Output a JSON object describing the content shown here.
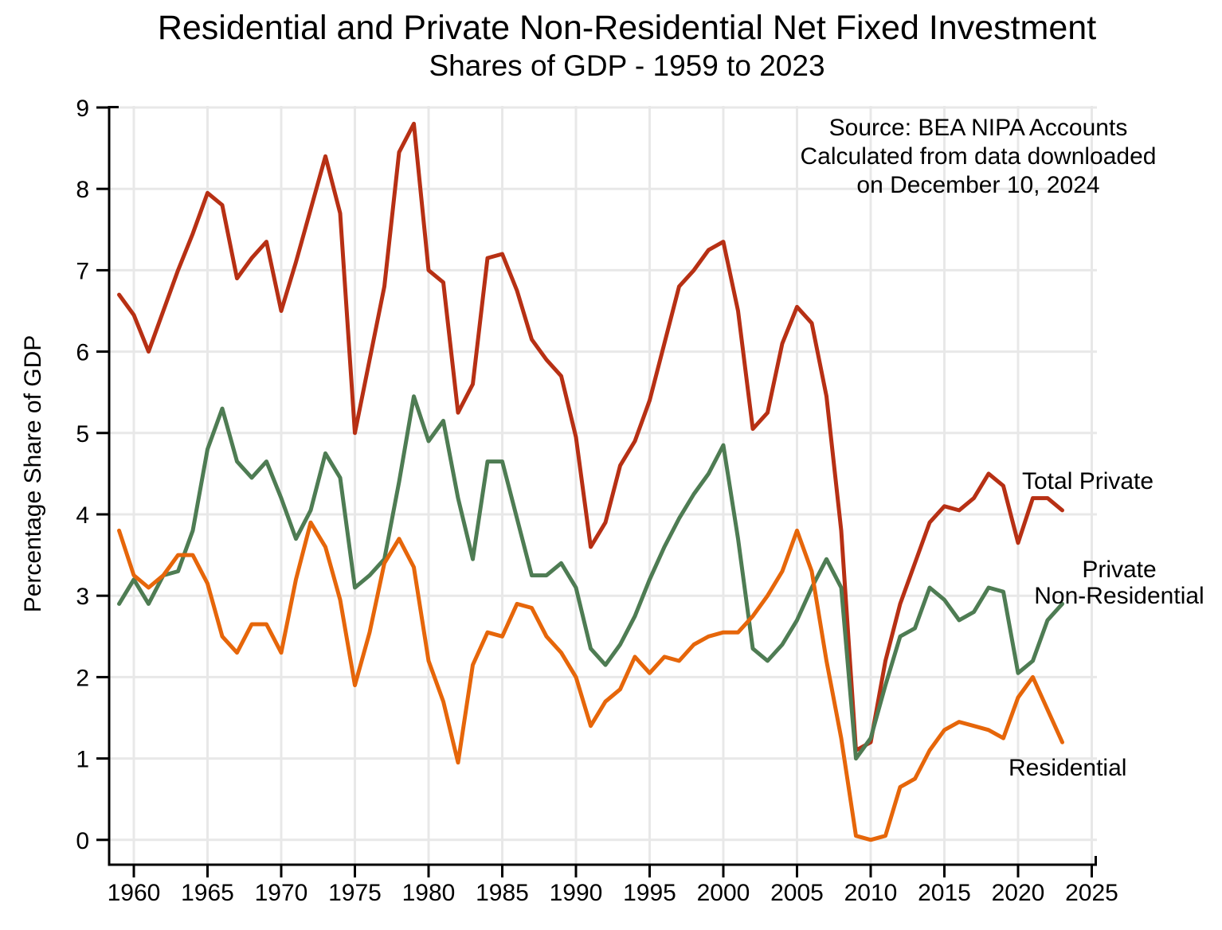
{
  "title": "Residential and Private Non-Residential Net Fixed Investment",
  "subtitle": "Shares of GDP - 1959 to 2023",
  "y_axis_label": "Percentage Share of GDP",
  "source_note": {
    "line1": "Source:  BEA NIPA Accounts",
    "line2": "Calculated from data downloaded",
    "line3": "on December 10, 2024"
  },
  "series_labels": {
    "total_private": "Total Private",
    "private_line1": "Private",
    "private_line2": "Non-Residential",
    "residential": "Residential"
  },
  "colors": {
    "total_private": "#b73014",
    "private_non_residential": "#4e7c53",
    "residential": "#e6660a",
    "gridline": "#e8e8e8",
    "axis": "#000000"
  },
  "chart_data": {
    "type": "line",
    "title": "Residential and Private Non-Residential Net Fixed Investment",
    "subtitle": "Shares of GDP - 1959 to 2023",
    "xlabel": "",
    "ylabel": "Percentage Share of GDP",
    "xlim": [
      1958.3,
      2025.8
    ],
    "ylim": [
      0,
      9
    ],
    "xticks": [
      1960,
      1965,
      1970,
      1975,
      1980,
      1985,
      1990,
      1995,
      2000,
      2005,
      2010,
      2015,
      2020,
      2025
    ],
    "yticks": [
      0,
      1,
      2,
      3,
      4,
      5,
      6,
      7,
      8,
      9
    ],
    "grid": true,
    "legend_position": "direct line labels at right",
    "annotation": "Source:  BEA NIPA Accounts / Calculated from data downloaded / on December 10, 2024",
    "x": [
      1959,
      1960,
      1961,
      1962,
      1963,
      1964,
      1965,
      1966,
      1967,
      1968,
      1969,
      1970,
      1971,
      1972,
      1973,
      1974,
      1975,
      1976,
      1977,
      1978,
      1979,
      1980,
      1981,
      1982,
      1983,
      1984,
      1985,
      1986,
      1987,
      1988,
      1989,
      1990,
      1991,
      1992,
      1993,
      1994,
      1995,
      1996,
      1997,
      1998,
      1999,
      2000,
      2001,
      2002,
      2003,
      2004,
      2005,
      2006,
      2007,
      2008,
      2009,
      2010,
      2011,
      2012,
      2013,
      2014,
      2015,
      2016,
      2017,
      2018,
      2019,
      2020,
      2021,
      2022,
      2023
    ],
    "series": [
      {
        "name": "Total Private",
        "color": "#b73014",
        "values": [
          6.7,
          6.45,
          6.0,
          6.5,
          7.0,
          7.45,
          7.95,
          7.8,
          6.9,
          7.15,
          7.35,
          6.5,
          7.1,
          7.75,
          8.4,
          7.7,
          5.0,
          5.9,
          6.8,
          8.45,
          8.8,
          7.0,
          6.85,
          5.25,
          5.6,
          7.15,
          7.2,
          6.75,
          6.15,
          5.9,
          5.7,
          4.95,
          3.6,
          3.9,
          4.6,
          4.9,
          5.4,
          6.1,
          6.8,
          7.0,
          7.25,
          7.35,
          6.5,
          5.05,
          5.25,
          6.1,
          6.55,
          6.35,
          5.45,
          3.8,
          1.1,
          1.2,
          2.2,
          2.9,
          3.4,
          3.9,
          4.1,
          4.05,
          4.2,
          4.5,
          4.35,
          3.65,
          4.2,
          4.2,
          4.05
        ]
      },
      {
        "name": "Private Non-Residential",
        "color": "#4e7c53",
        "values": [
          2.9,
          3.2,
          2.9,
          3.25,
          3.3,
          3.8,
          4.8,
          5.3,
          4.65,
          4.45,
          4.65,
          4.2,
          3.7,
          4.05,
          4.75,
          4.45,
          3.1,
          3.25,
          3.45,
          4.4,
          5.45,
          4.9,
          5.15,
          4.2,
          3.45,
          4.65,
          4.65,
          3.95,
          3.25,
          3.25,
          3.4,
          3.1,
          2.35,
          2.15,
          2.4,
          2.75,
          3.2,
          3.6,
          3.95,
          4.25,
          4.5,
          4.85,
          3.7,
          2.35,
          2.2,
          2.4,
          2.7,
          3.1,
          3.45,
          3.1,
          1.0,
          1.25,
          1.9,
          2.5,
          2.6,
          3.1,
          2.95,
          2.7,
          2.8,
          3.1,
          3.05,
          2.05,
          2.2,
          2.7,
          2.9
        ]
      },
      {
        "name": "Residential",
        "color": "#e6660a",
        "values": [
          3.8,
          3.25,
          3.1,
          3.25,
          3.5,
          3.5,
          3.15,
          2.5,
          2.3,
          2.65,
          2.65,
          2.3,
          3.2,
          3.9,
          3.6,
          2.95,
          1.9,
          2.55,
          3.4,
          3.7,
          3.35,
          2.2,
          1.7,
          0.95,
          2.15,
          2.55,
          2.5,
          2.9,
          2.85,
          2.5,
          2.3,
          2.0,
          1.4,
          1.7,
          1.85,
          2.25,
          2.05,
          2.25,
          2.2,
          2.4,
          2.5,
          2.55,
          2.55,
          2.75,
          3.0,
          3.3,
          3.8,
          3.3,
          2.2,
          1.25,
          0.05,
          0.0,
          0.05,
          0.65,
          0.75,
          1.1,
          1.35,
          1.45,
          1.4,
          1.35,
          1.25,
          1.75,
          2.0,
          1.6,
          1.2
        ]
      }
    ]
  }
}
